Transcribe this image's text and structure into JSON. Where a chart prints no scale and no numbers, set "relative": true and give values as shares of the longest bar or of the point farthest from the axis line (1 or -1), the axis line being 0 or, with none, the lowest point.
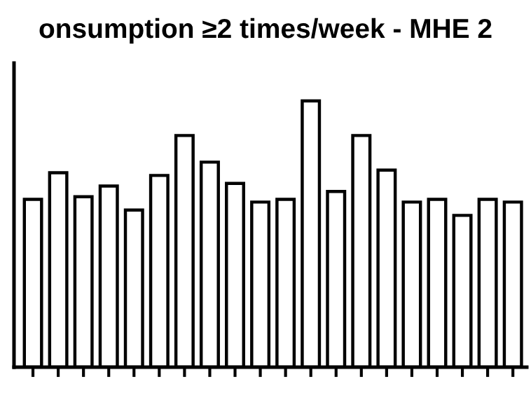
{
  "chart_data": {
    "type": "bar",
    "title": "onsumption ≥2 times/week - MHE 2",
    "relative": true,
    "categories": [
      null,
      null,
      null,
      null,
      null,
      null,
      null,
      null,
      null,
      null,
      null,
      null,
      null,
      null,
      null,
      null,
      null,
      null,
      null,
      null
    ],
    "values": [
      0.63,
      0.73,
      0.64,
      0.68,
      0.59,
      0.72,
      0.87,
      0.77,
      0.69,
      0.62,
      0.63,
      1,
      0.66,
      0.87,
      0.74,
      0.62,
      0.63,
      0.57,
      0.63,
      0.62
    ],
    "color": "#ffffff",
    "grid": false,
    "legend": false
  }
}
